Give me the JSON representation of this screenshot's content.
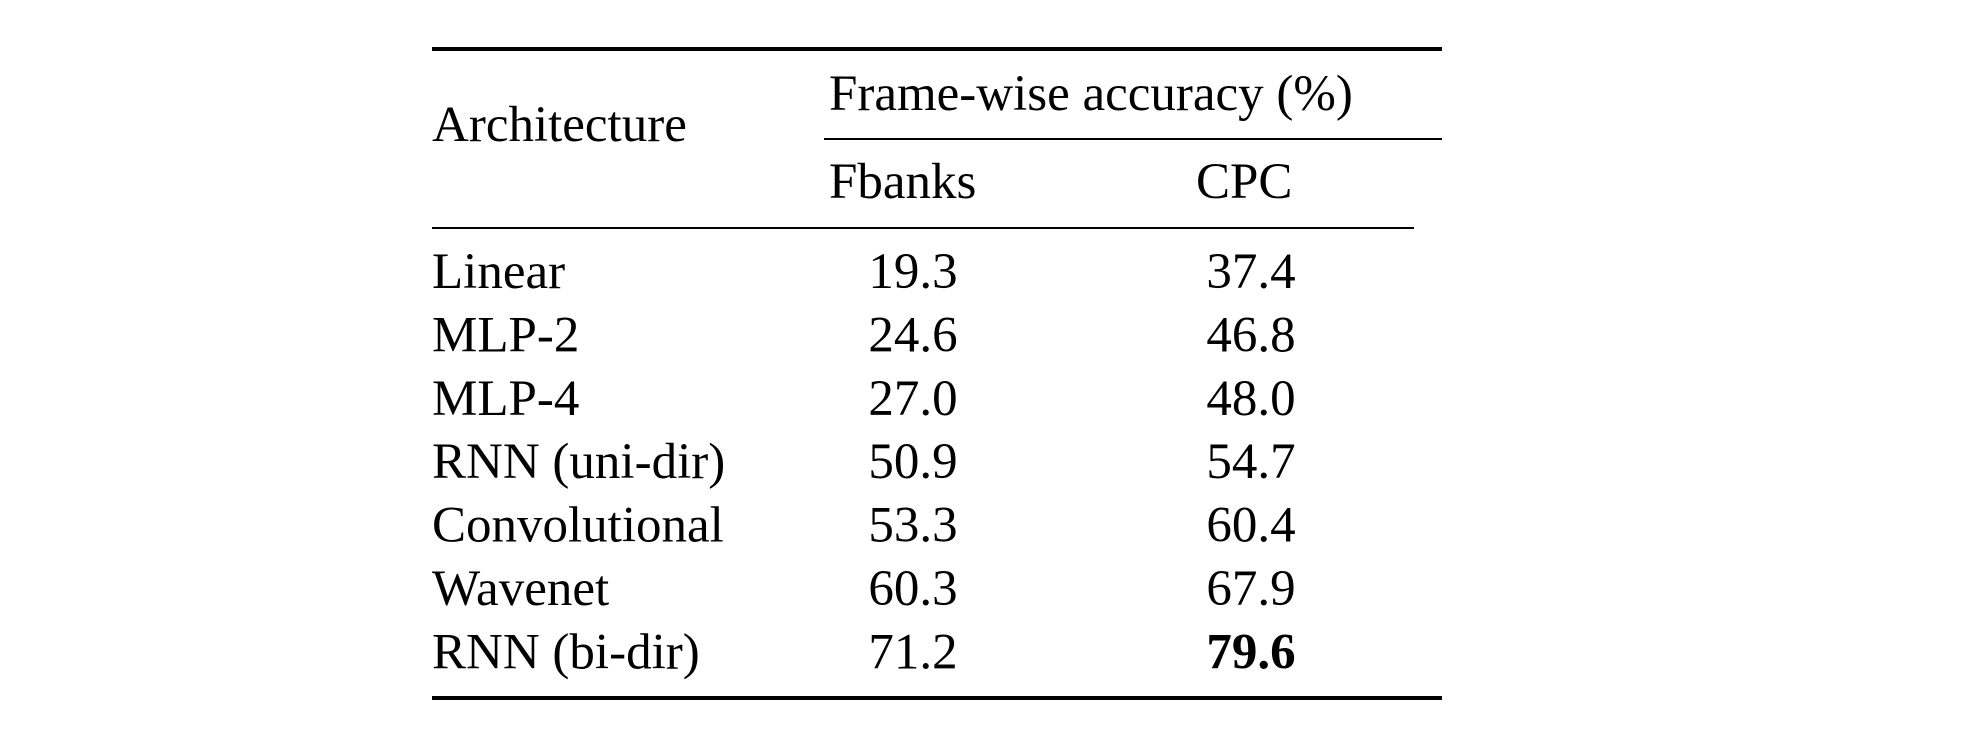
{
  "table": {
    "header": {
      "row_label": "Architecture",
      "group": "Frame-wise accuracy (%)",
      "columns": [
        "Fbanks",
        "CPC"
      ]
    },
    "rows": [
      [
        "Linear",
        "19.3",
        "37.4"
      ],
      [
        "MLP-2",
        "24.6",
        "46.8"
      ],
      [
        "MLP-4",
        "27.0",
        "48.0"
      ],
      [
        "RNN (uni-dir)",
        "50.9",
        "54.7"
      ],
      [
        "Convolutional",
        "53.3",
        "60.4"
      ],
      [
        "Wavenet",
        "60.3",
        "67.9"
      ],
      [
        "RNN (bi-dir)",
        "71.2",
        "79.6"
      ]
    ],
    "bold_cells": [
      [
        6,
        2
      ]
    ]
  }
}
